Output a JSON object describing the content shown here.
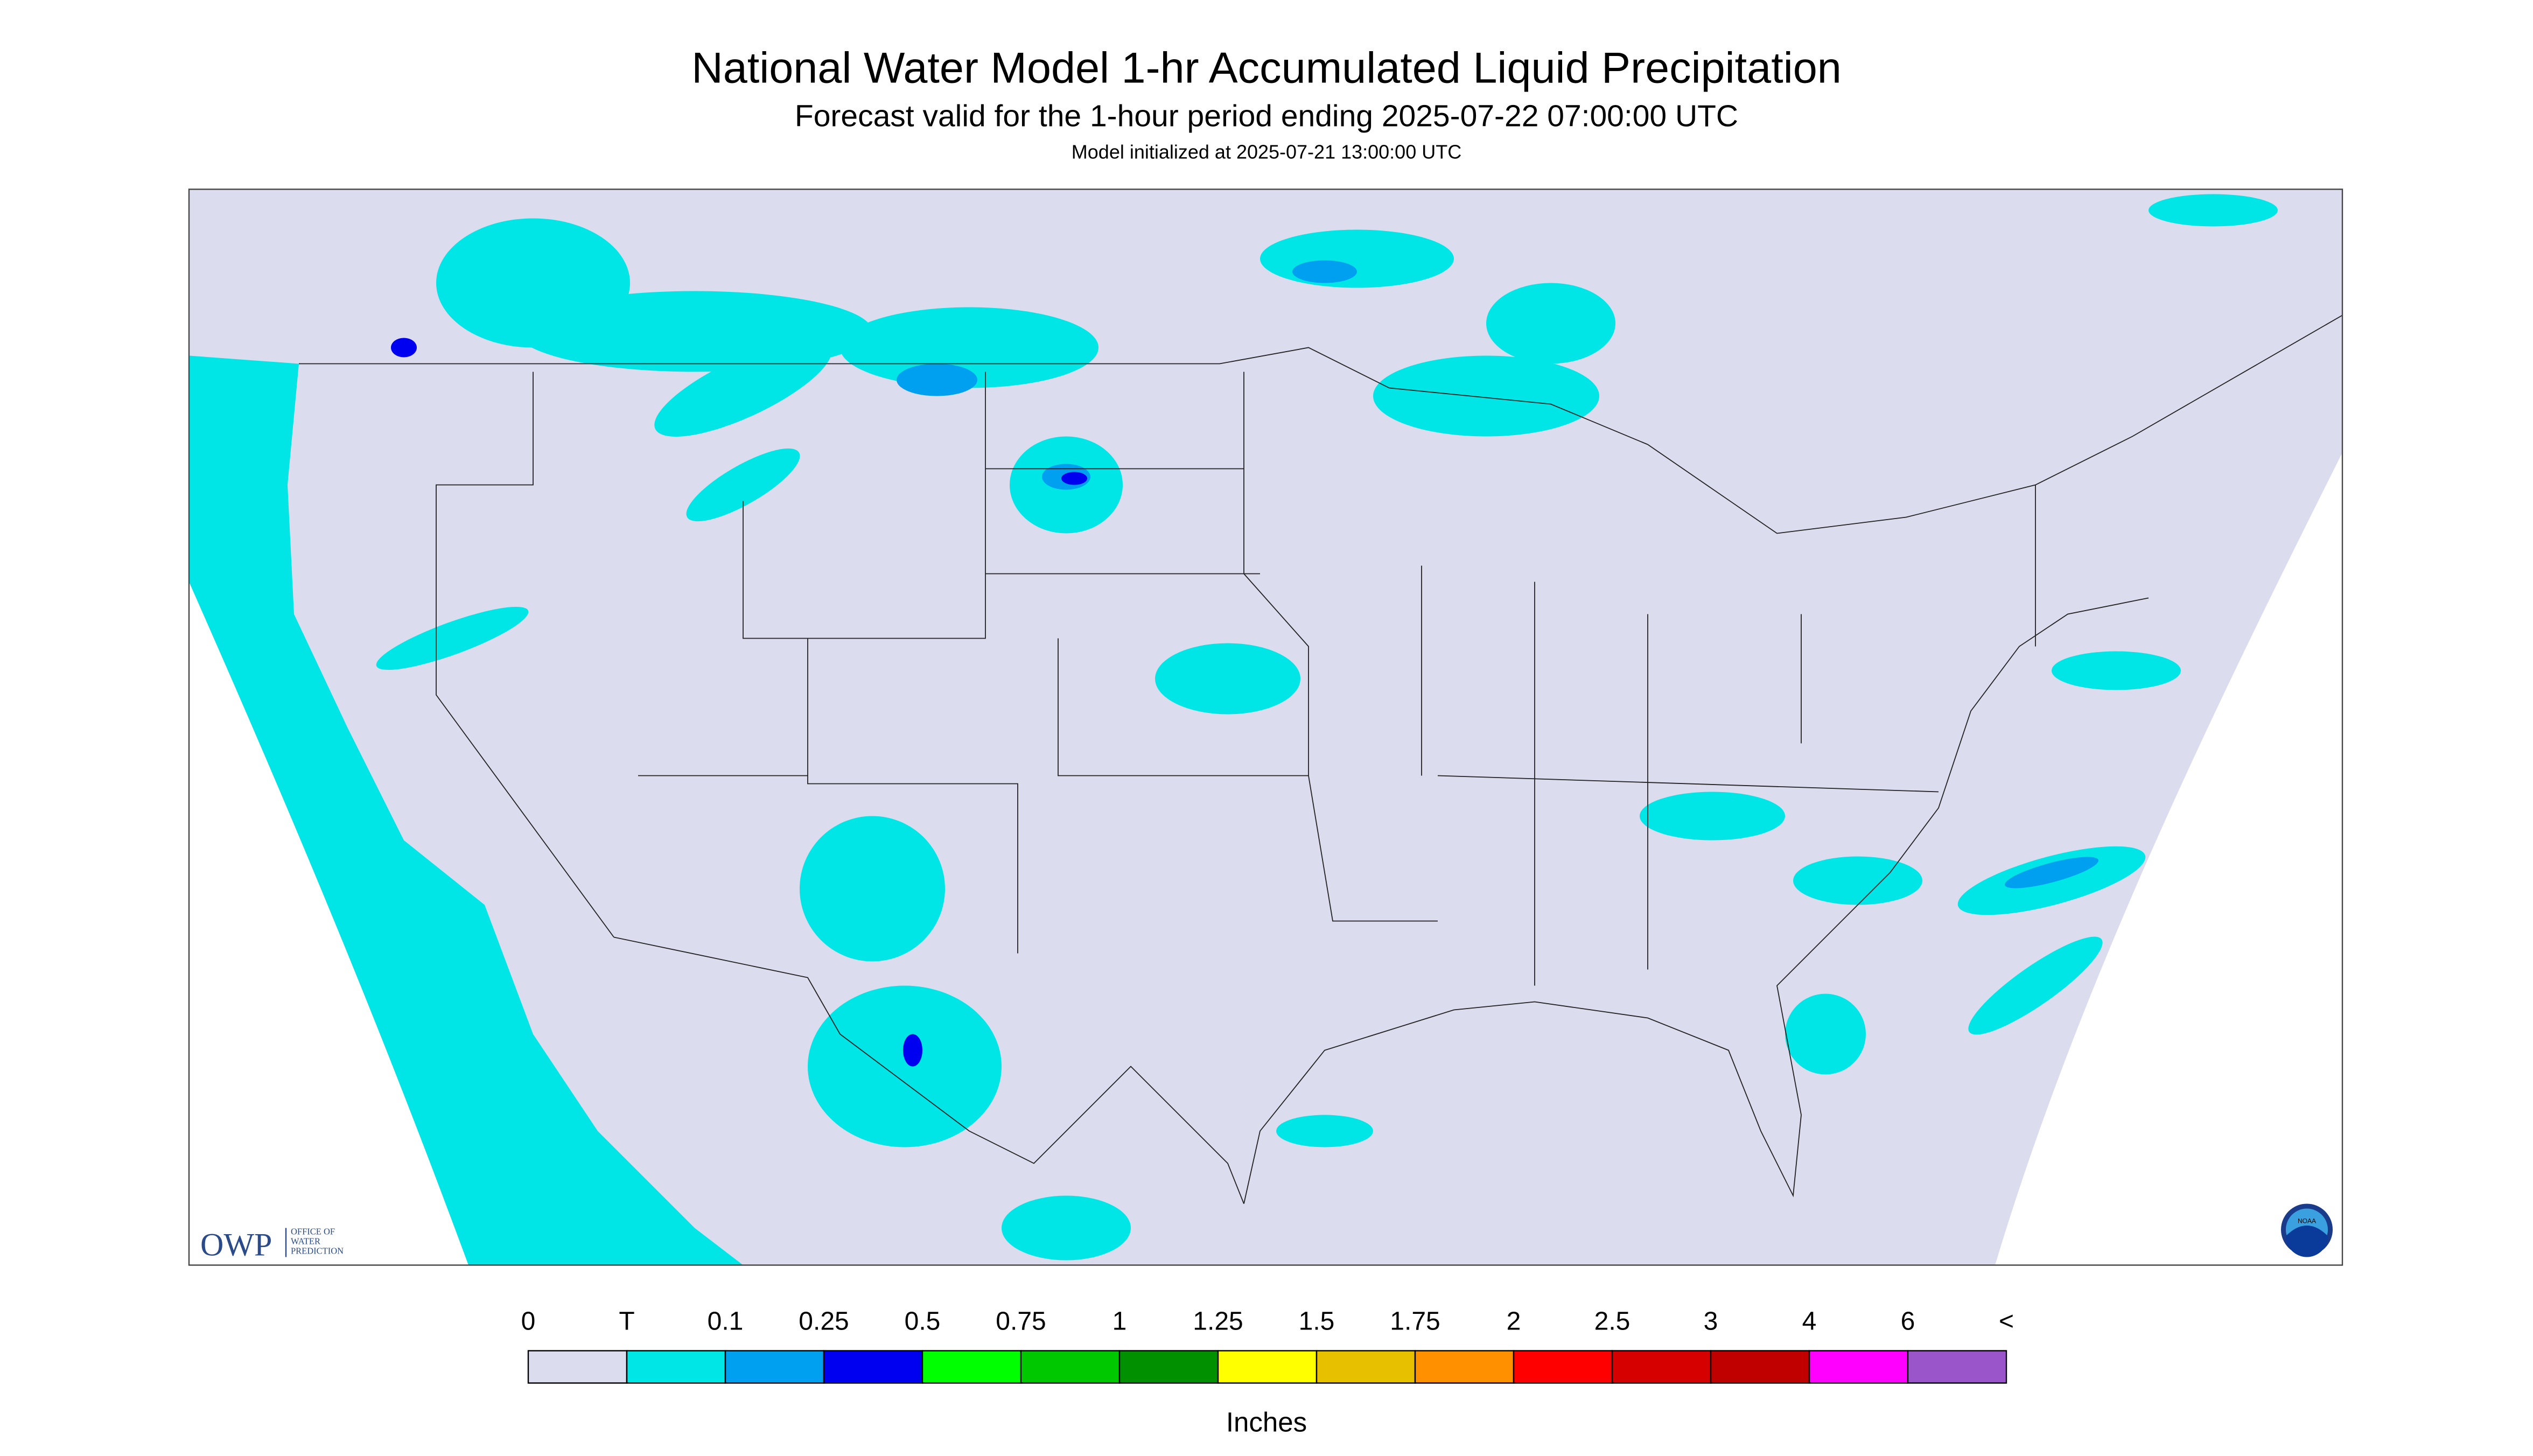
{
  "header": {
    "title": "National Water Model 1-hr Accumulated Liquid Precipitation",
    "subtitle": "Forecast valid for the 1-hour period ending 2025-07-22 07:00:00 UTC",
    "init": "Model initialized at 2025-07-21 13:00:00 UTC"
  },
  "legend": {
    "labels": [
      "0",
      "T",
      "0.1",
      "0.25",
      "0.5",
      "0.75",
      "1",
      "1.25",
      "1.5",
      "1.75",
      "2",
      "2.5",
      "3",
      "4",
      "6",
      "<"
    ],
    "colors": [
      "#dcdcef",
      "#00e6e6",
      "#00a0f0",
      "#0000f0",
      "#00ff00",
      "#00c800",
      "#009000",
      "#ffff00",
      "#e7c000",
      "#ff9000",
      "#ff0000",
      "#d60000",
      "#c00000",
      "#ff00ff",
      "#9955c9"
    ],
    "unit": "Inches"
  },
  "owp_logo": {
    "name": "OWP",
    "lines": [
      "OFFICE OF",
      "WATER",
      "PREDICTION"
    ]
  },
  "noaa_logo": {
    "name": "NOAA"
  }
}
